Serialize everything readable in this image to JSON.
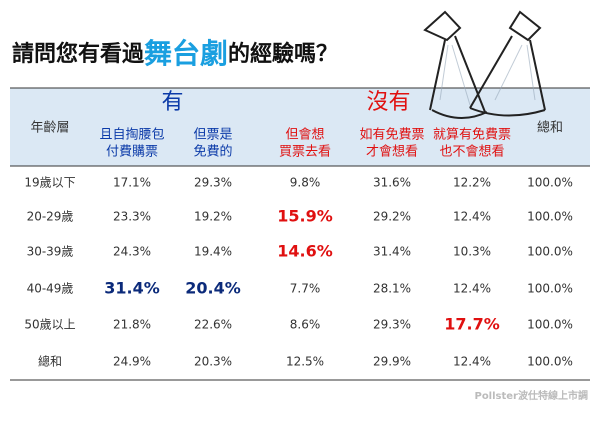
{
  "title": {
    "before": "請問您有看過",
    "highlight": "舞台劇",
    "after": "的經驗嗎？"
  },
  "table": {
    "row_header": "年齡層",
    "groups": [
      {
        "label": "有",
        "color": "#0b3aa8",
        "span": [
          0,
          1
        ]
      },
      {
        "label": "沒有",
        "color": "#e01010",
        "span": [
          2,
          4
        ]
      }
    ],
    "total_header": "總和",
    "columns": [
      [
        "且自掏腰包",
        "付費購票"
      ],
      [
        "但票是",
        "免費的"
      ],
      [
        "但會想",
        "買票去看"
      ],
      [
        "如有免費票",
        "才會想看"
      ],
      [
        "就算有免費票",
        "也不會想看"
      ]
    ],
    "column_groups": [
      0,
      0,
      1,
      1,
      1
    ],
    "rows": [
      {
        "label": "19歲以下",
        "cells": [
          "17.1%",
          "29.3%",
          "9.8%",
          "31.6%",
          "12.2%"
        ],
        "total": "100.0%"
      },
      {
        "label": "20-29歲",
        "cells": [
          "23.3%",
          "19.2%",
          "15.9%",
          "29.2%",
          "12.4%"
        ],
        "total": "100.0%"
      },
      {
        "label": "30-39歲",
        "cells": [
          "24.3%",
          "19.4%",
          "14.6%",
          "31.4%",
          "10.3%"
        ],
        "total": "100.0%"
      },
      {
        "label": "40-49歲",
        "cells": [
          "31.4%",
          "20.4%",
          "7.7%",
          "28.1%",
          "12.4%"
        ],
        "total": "100.0%"
      },
      {
        "label": "50歲以上",
        "cells": [
          "21.8%",
          "22.6%",
          "8.6%",
          "29.3%",
          "17.7%"
        ],
        "total": "100.0%"
      },
      {
        "label": "總和",
        "cells": [
          "24.9%",
          "20.3%",
          "12.5%",
          "29.9%",
          "12.4%"
        ],
        "total": "100.0%"
      }
    ],
    "highlights": [
      {
        "row": 1,
        "col": 2,
        "color": "#e01010"
      },
      {
        "row": 2,
        "col": 2,
        "color": "#e01010"
      },
      {
        "row": 3,
        "col": 0,
        "color": "#0b2a7a"
      },
      {
        "row": 3,
        "col": 1,
        "color": "#0b2a7a"
      },
      {
        "row": 4,
        "col": 4,
        "color": "#e01010"
      }
    ]
  },
  "footer": "Pollster波仕特線上市調"
}
